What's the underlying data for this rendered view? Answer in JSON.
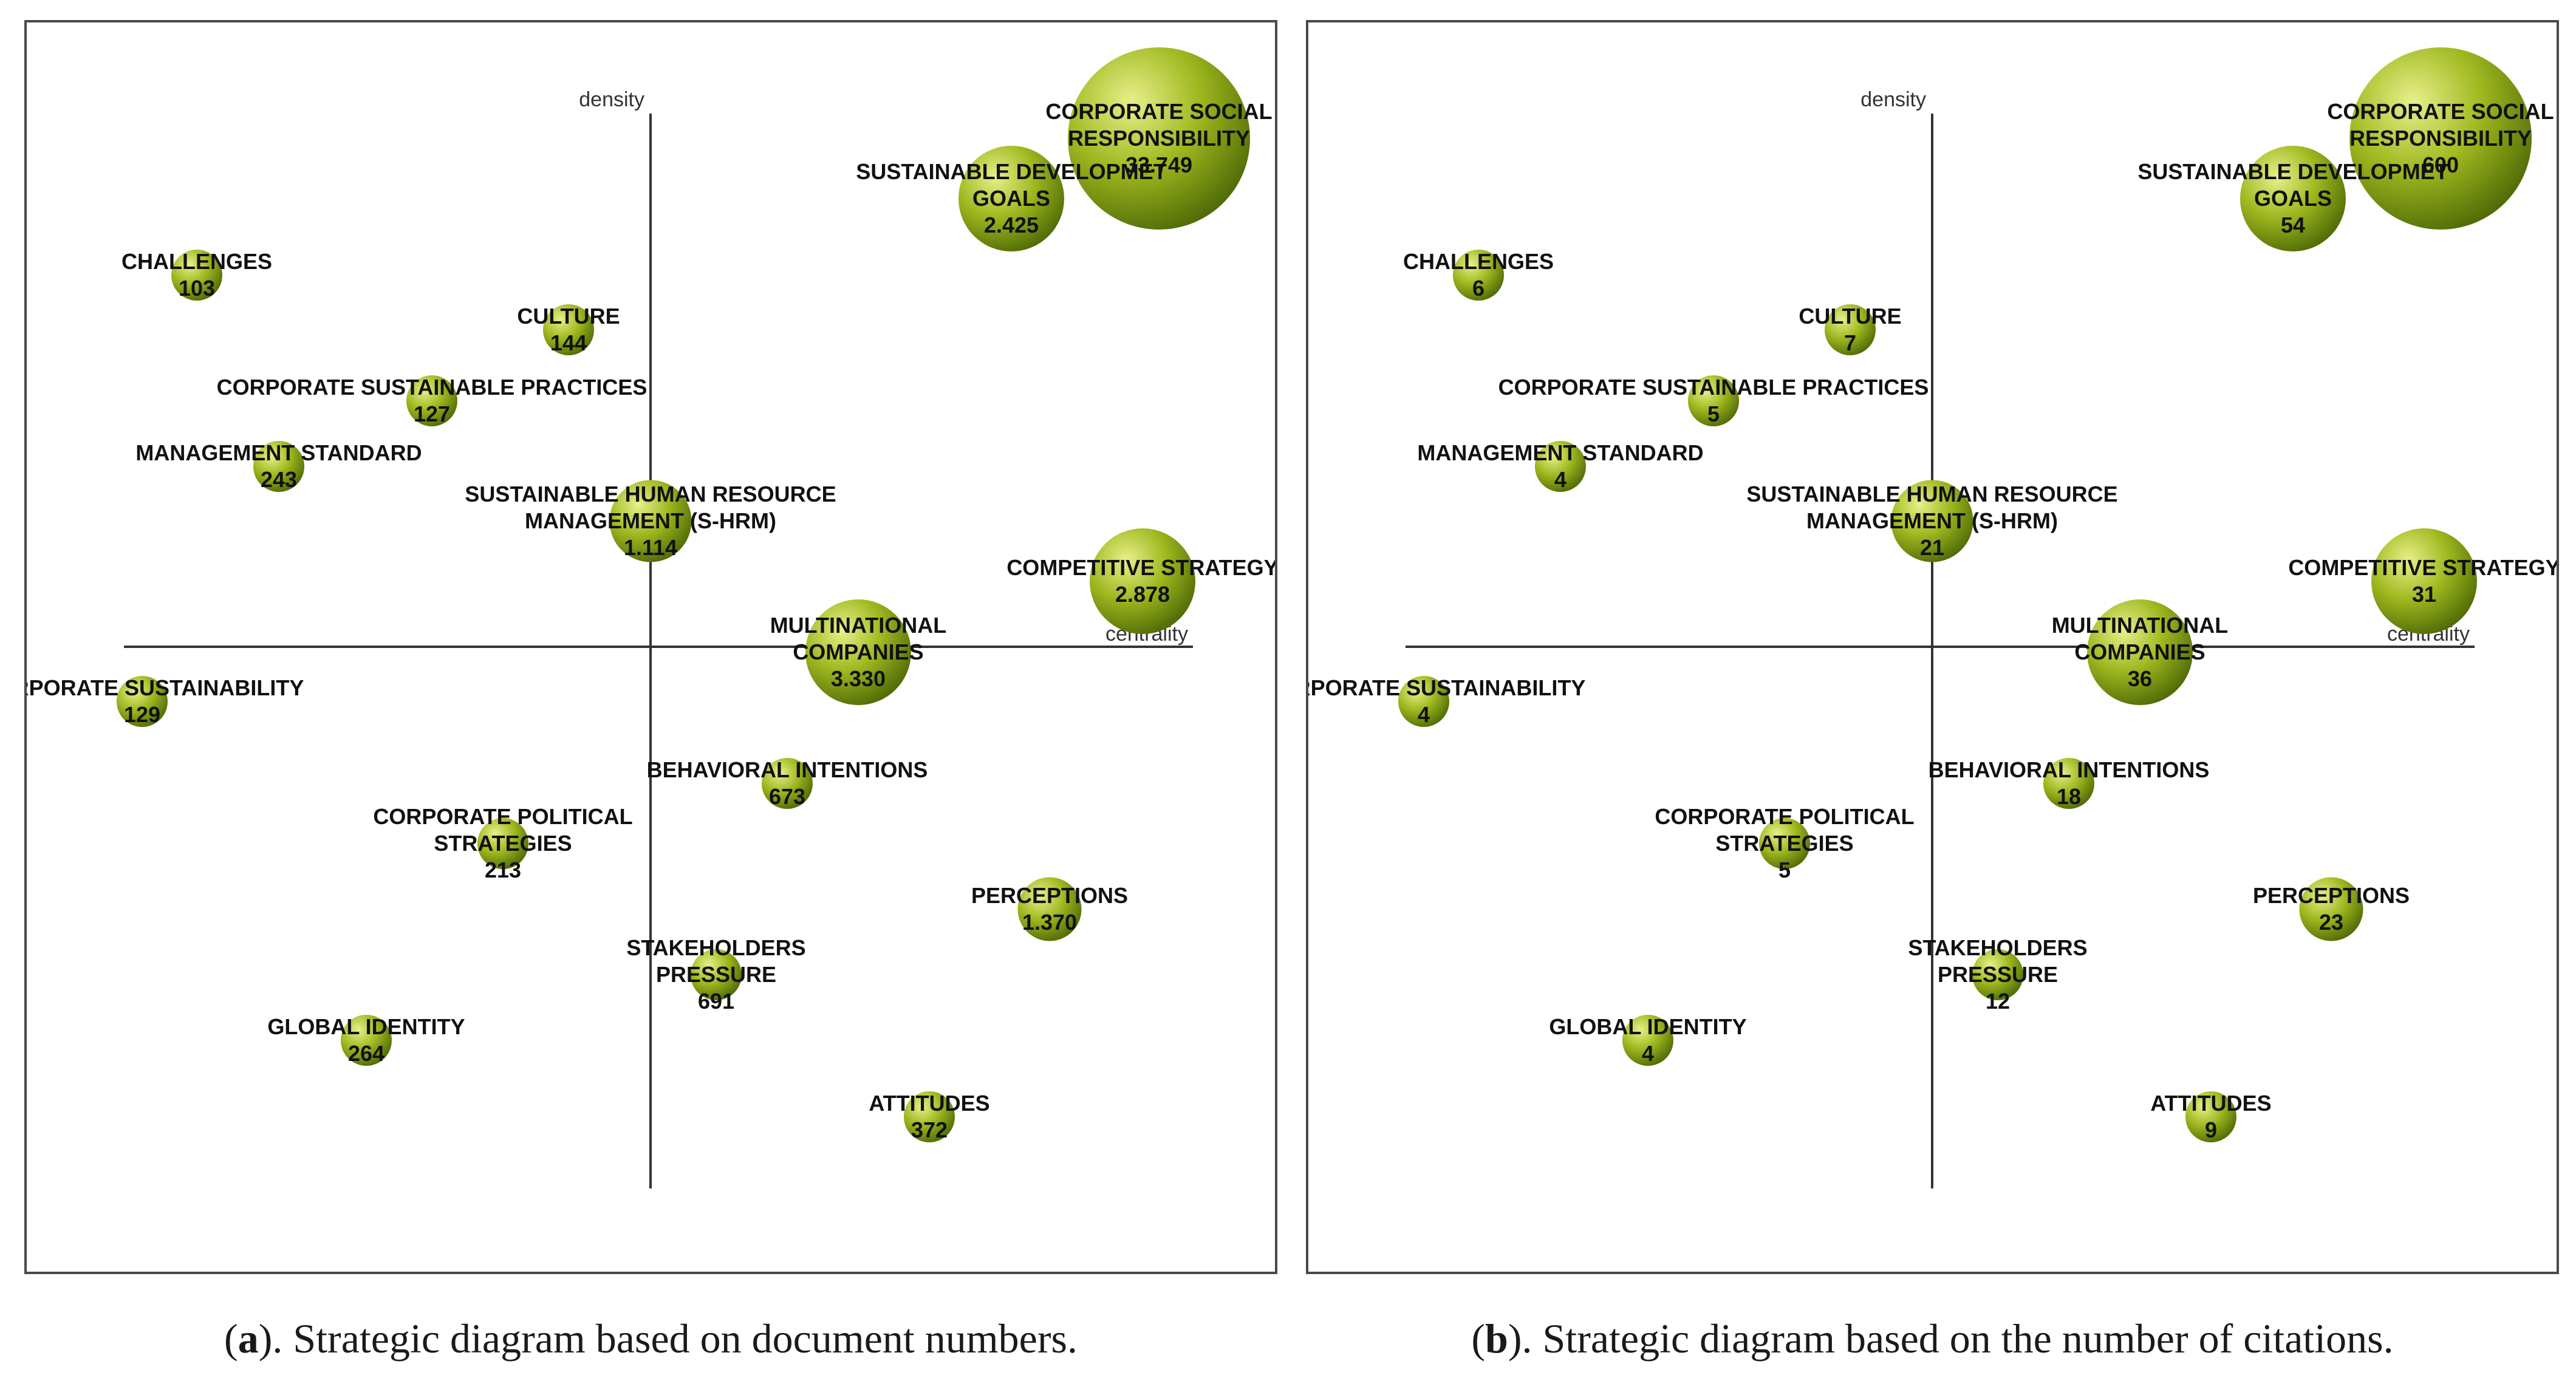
{
  "chart_data": [
    {
      "type": "scatter",
      "x_axis_label": "centrality",
      "y_axis_label": "density",
      "caption_letter": "a",
      "caption_text": "). Strategic diagram based on document numbers.",
      "caption_open": "(",
      "points": [
        {
          "name": [
            "CORPORATE SOCIAL",
            "RESPONSIBILITY"
          ],
          "value": "33.749",
          "x": 0.93,
          "y": 0.93,
          "size": 1.0
        },
        {
          "name": [
            "SUSTAINABLE DEVELOPMET",
            "GOALS"
          ],
          "value": "2.425",
          "x": 0.66,
          "y": 0.82,
          "size": 0.58
        },
        {
          "name": [
            "CHALLENGES"
          ],
          "value": "103",
          "x": -0.83,
          "y": 0.68,
          "size": 0.28
        },
        {
          "name": [
            "CULTURE"
          ],
          "value": "144",
          "x": -0.15,
          "y": 0.58,
          "size": 0.28
        },
        {
          "name": [
            "CORPORATE SUSTAINABLE PRACTICES"
          ],
          "value": "127",
          "x": -0.4,
          "y": 0.45,
          "size": 0.28
        },
        {
          "name": [
            "MANAGEMENT STANDARD"
          ],
          "value": "243",
          "x": -0.68,
          "y": 0.33,
          "size": 0.28
        },
        {
          "name": [
            "SUSTAINABLE HUMAN RESOURCE",
            "MANAGEMENT (S-HRM)"
          ],
          "value": "1.114",
          "x": 0.0,
          "y": 0.23,
          "size": 0.45
        },
        {
          "name": [
            "COMPETITIVE STRATEGY"
          ],
          "value": "2.878",
          "x": 0.9,
          "y": 0.12,
          "size": 0.58
        },
        {
          "name": [
            "MULTINATIONAL",
            "COMPANIES"
          ],
          "value": "3.330",
          "x": 0.38,
          "y": -0.01,
          "size": 0.58
        },
        {
          "name": [
            "CORPORATE SUSTAINABILITY"
          ],
          "value": "129",
          "x": -0.93,
          "y": -0.1,
          "size": 0.28
        },
        {
          "name": [
            "BEHAVIORAL INTENTIONS"
          ],
          "value": "673",
          "x": 0.25,
          "y": -0.25,
          "size": 0.28
        },
        {
          "name": [
            "CORPORATE POLITICAL",
            "STRATEGIES"
          ],
          "value": "213",
          "x": -0.27,
          "y": -0.36,
          "size": 0.28
        },
        {
          "name": [
            "PERCEPTIONS"
          ],
          "value": "1.370",
          "x": 0.73,
          "y": -0.48,
          "size": 0.35
        },
        {
          "name": [
            "STAKEHOLDERS",
            "PRESSURE"
          ],
          "value": "691",
          "x": 0.12,
          "y": -0.6,
          "size": 0.28
        },
        {
          "name": [
            "GLOBAL IDENTITY"
          ],
          "value": "264",
          "x": -0.52,
          "y": -0.72,
          "size": 0.28
        },
        {
          "name": [
            "ATTITUDES"
          ],
          "value": "372",
          "x": 0.51,
          "y": -0.86,
          "size": 0.28
        }
      ]
    },
    {
      "type": "scatter",
      "x_axis_label": "centrality",
      "y_axis_label": "density",
      "caption_letter": "b",
      "caption_text": "). Strategic diagram based on the number of citations.",
      "caption_open": "(",
      "points": [
        {
          "name": [
            "CORPORATE SOCIAL",
            "RESPONSIBILITY"
          ],
          "value": "600",
          "x": 0.93,
          "y": 0.93,
          "size": 1.0
        },
        {
          "name": [
            "SUSTAINABLE DEVELOPMET",
            "GOALS"
          ],
          "value": "54",
          "x": 0.66,
          "y": 0.82,
          "size": 0.58
        },
        {
          "name": [
            "CHALLENGES"
          ],
          "value": "6",
          "x": -0.83,
          "y": 0.68,
          "size": 0.28
        },
        {
          "name": [
            "CULTURE"
          ],
          "value": "7",
          "x": -0.15,
          "y": 0.58,
          "size": 0.28
        },
        {
          "name": [
            "CORPORATE SUSTAINABLE PRACTICES"
          ],
          "value": "5",
          "x": -0.4,
          "y": 0.45,
          "size": 0.28
        },
        {
          "name": [
            "MANAGEMENT STANDARD"
          ],
          "value": "4",
          "x": -0.68,
          "y": 0.33,
          "size": 0.28
        },
        {
          "name": [
            "SUSTAINABLE HUMAN RESOURCE",
            "MANAGEMENT (S-HRM)"
          ],
          "value": "21",
          "x": 0.0,
          "y": 0.23,
          "size": 0.45
        },
        {
          "name": [
            "COMPETITIVE STRATEGY"
          ],
          "value": "31",
          "x": 0.9,
          "y": 0.12,
          "size": 0.58
        },
        {
          "name": [
            "MULTINATIONAL",
            "COMPANIES"
          ],
          "value": "36",
          "x": 0.38,
          "y": -0.01,
          "size": 0.58
        },
        {
          "name": [
            "CORPORATE SUSTAINABILITY"
          ],
          "value": "4",
          "x": -0.93,
          "y": -0.1,
          "size": 0.28
        },
        {
          "name": [
            "BEHAVIORAL INTENTIONS"
          ],
          "value": "18",
          "x": 0.25,
          "y": -0.25,
          "size": 0.28
        },
        {
          "name": [
            "CORPORATE POLITICAL",
            "STRATEGIES"
          ],
          "value": "5",
          "x": -0.27,
          "y": -0.36,
          "size": 0.28
        },
        {
          "name": [
            "PERCEPTIONS"
          ],
          "value": "23",
          "x": 0.73,
          "y": -0.48,
          "size": 0.35
        },
        {
          "name": [
            "STAKEHOLDERS",
            "PRESSURE"
          ],
          "value": "12",
          "x": 0.12,
          "y": -0.6,
          "size": 0.28
        },
        {
          "name": [
            "GLOBAL IDENTITY"
          ],
          "value": "4",
          "x": -0.52,
          "y": -0.72,
          "size": 0.28
        },
        {
          "name": [
            "ATTITUDES"
          ],
          "value": "9",
          "x": 0.51,
          "y": -0.86,
          "size": 0.28
        }
      ]
    }
  ],
  "colors": {
    "bubble_light": "#e8f08a",
    "bubble_mid": "#9fb81f",
    "bubble_dark": "#4f6a06",
    "axis": "#333333"
  }
}
